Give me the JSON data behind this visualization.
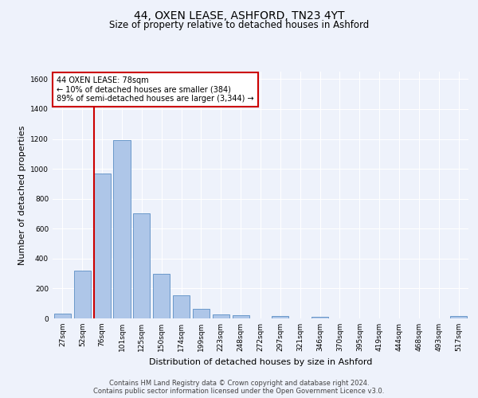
{
  "title": "44, OXEN LEASE, ASHFORD, TN23 4YT",
  "subtitle": "Size of property relative to detached houses in Ashford",
  "xlabel": "Distribution of detached houses by size in Ashford",
  "ylabel": "Number of detached properties",
  "footer1": "Contains HM Land Registry data © Crown copyright and database right 2024.",
  "footer2": "Contains public sector information licensed under the Open Government Licence v3.0.",
  "bin_labels": [
    "27sqm",
    "52sqm",
    "76sqm",
    "101sqm",
    "125sqm",
    "150sqm",
    "174sqm",
    "199sqm",
    "223sqm",
    "248sqm",
    "272sqm",
    "297sqm",
    "321sqm",
    "346sqm",
    "370sqm",
    "395sqm",
    "419sqm",
    "444sqm",
    "468sqm",
    "493sqm",
    "517sqm"
  ],
  "bar_values": [
    30,
    320,
    970,
    1190,
    700,
    300,
    155,
    65,
    25,
    20,
    0,
    15,
    0,
    10,
    0,
    0,
    0,
    0,
    0,
    0,
    15
  ],
  "bar_color": "#aec6e8",
  "bar_edge_color": "#5b8ec4",
  "property_line_x": 1.575,
  "property_label": "44 OXEN LEASE: 78sqm",
  "annotation_line1": "← 10% of detached houses are smaller (384)",
  "annotation_line2": "89% of semi-detached houses are larger (3,344) →",
  "annotation_box_facecolor": "#ffffff",
  "annotation_box_edgecolor": "#cc0000",
  "vline_color": "#cc0000",
  "ylim": [
    0,
    1650
  ],
  "yticks": [
    0,
    200,
    400,
    600,
    800,
    1000,
    1200,
    1400,
    1600
  ],
  "background_color": "#eef2fb",
  "grid_color": "#ffffff",
  "title_fontsize": 10,
  "subtitle_fontsize": 8.5,
  "ylabel_fontsize": 8,
  "xlabel_fontsize": 8,
  "tick_fontsize": 6.5,
  "footer_fontsize": 6
}
